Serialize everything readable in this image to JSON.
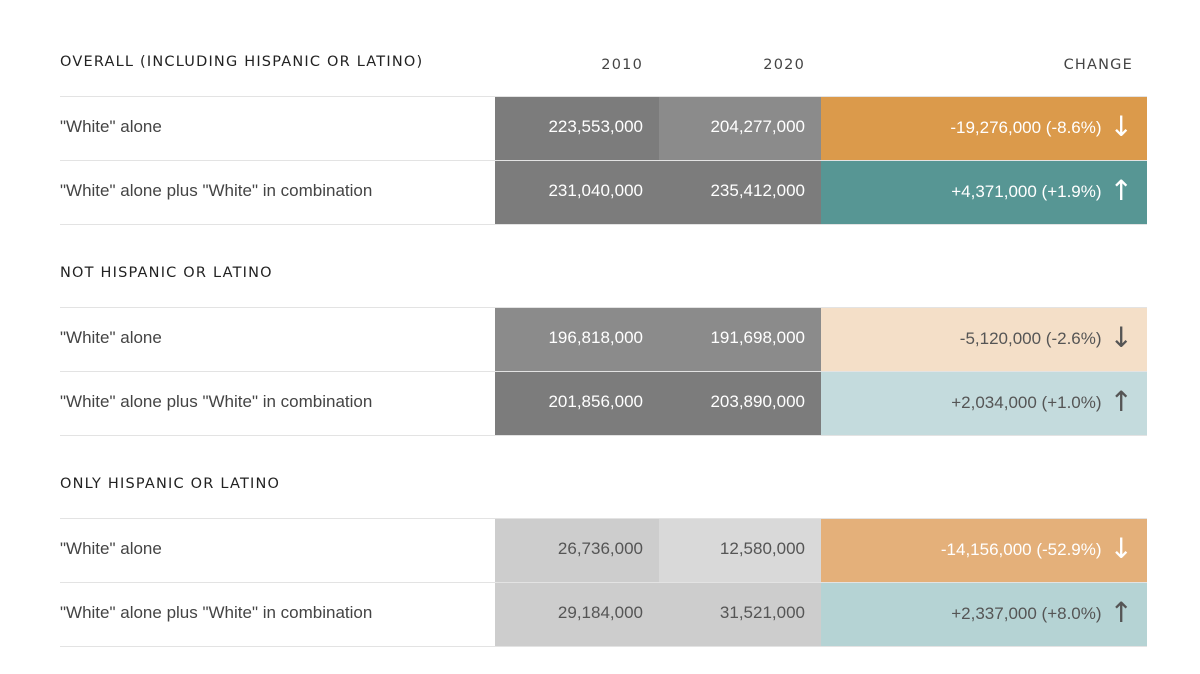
{
  "columns": {
    "y2010": "2010",
    "y2020": "2020",
    "change": "CHANGE"
  },
  "arrows": {
    "down": "↓",
    "up": "↑"
  },
  "colors": {
    "decrease_strong": "#db9a4b",
    "decrease_mid": "#e4b07a",
    "decrease_light": "#f4dfc8",
    "increase_strong": "#579694",
    "increase_light": "#c4dbdd",
    "increase_mid": "#b5d3d4",
    "text_on_dark": "#ffffff",
    "text_on_light": "#555555"
  },
  "chart_data": {
    "type": "table",
    "columns": [
      "",
      "2010",
      "2020",
      "CHANGE"
    ],
    "sections": [
      {
        "title": "OVERALL (INCLUDING HISPANIC OR LATINO)",
        "rows": [
          {
            "label": "\"White\" alone",
            "v2010": 223553000,
            "v2020": 204277000,
            "v2010_text": "223,553,000",
            "v2020_text": "204,277,000",
            "change_text": "-19,276,000 (-8.6%)",
            "change": -19276000,
            "change_pct": -8.6,
            "direction": "down",
            "color": "#db9a4b"
          },
          {
            "label": "\"White\" alone plus \"White\" in combination",
            "v2010": 231040000,
            "v2020": 235412000,
            "v2010_text": "231,040,000",
            "v2020_text": "235,412,000",
            "change_text": "+4,371,000 (+1.9%)",
            "change": 4371000,
            "change_pct": 1.9,
            "direction": "up",
            "color": "#579694"
          }
        ]
      },
      {
        "title": "NOT HISPANIC OR LATINO",
        "rows": [
          {
            "label": "\"White\" alone",
            "v2010": 196818000,
            "v2020": 191698000,
            "v2010_text": "196,818,000",
            "v2020_text": "191,698,000",
            "change_text": "-5,120,000 (-2.6%)",
            "change": -5120000,
            "change_pct": -2.6,
            "direction": "down",
            "color": "#f4dfc8"
          },
          {
            "label": "\"White\" alone plus \"White\" in combination",
            "v2010": 201856000,
            "v2020": 203890000,
            "v2010_text": "201,856,000",
            "v2020_text": "203,890,000",
            "change_text": "+2,034,000 (+1.0%)",
            "change": 2034000,
            "change_pct": 1.0,
            "direction": "up",
            "color": "#c4dbdd"
          }
        ]
      },
      {
        "title": "ONLY HISPANIC OR LATINO",
        "rows": [
          {
            "label": "\"White\" alone",
            "v2010": 26736000,
            "v2020": 12580000,
            "v2010_text": "26,736,000",
            "v2020_text": "12,580,000",
            "change_text": "-14,156,000 (-52.9%)",
            "change": -14156000,
            "change_pct": -52.9,
            "direction": "down",
            "color": "#e4b07a"
          },
          {
            "label": "\"White\" alone plus \"White\" in combination",
            "v2010": 29184000,
            "v2020": 31521000,
            "v2010_text": "29,184,000",
            "v2020_text": "31,521,000",
            "change_text": "+2,337,000 (+8.0%)",
            "change": 2337000,
            "change_pct": 8.0,
            "direction": "up",
            "color": "#b5d3d4"
          }
        ]
      }
    ]
  }
}
